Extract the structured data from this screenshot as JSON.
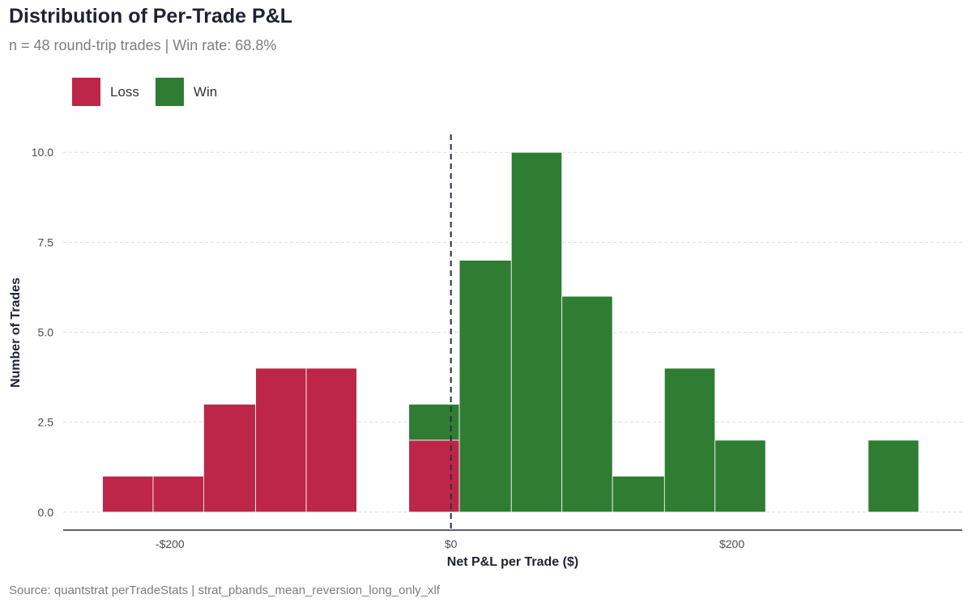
{
  "title": "Distribution of Per-Trade P&L",
  "subtitle": "n = 48 round-trip trades  |  Win rate: 68.8%",
  "caption": "Source: quantstrat perTradeStats | strat_pbands_mean_reversion_long_only_xlf",
  "legend": [
    {
      "label": "Loss",
      "color": "#be2649"
    },
    {
      "label": "Win",
      "color": "#2e7d32"
    }
  ],
  "chart_data": {
    "type": "bar",
    "stacked": true,
    "xlabel": "Net P&L per Trade ($)",
    "ylabel": "Number of Trades",
    "xlim": [
      -276,
      364
    ],
    "ylim": [
      -0.5,
      10.5
    ],
    "x_ticks": [
      {
        "value": -200,
        "label": "-$200"
      },
      {
        "value": 0,
        "label": "$0"
      },
      {
        "value": 200,
        "label": "$200"
      }
    ],
    "y_ticks": [
      {
        "value": 0,
        "label": "0.0"
      },
      {
        "value": 2.5,
        "label": "2.5"
      },
      {
        "value": 5,
        "label": "5.0"
      },
      {
        "value": 7.5,
        "label": "7.5"
      },
      {
        "value": 10,
        "label": "10.0"
      }
    ],
    "reference_line": {
      "x": 0,
      "style": "dashed"
    },
    "grid": "horizontal",
    "bins": [
      {
        "x0": -248,
        "x1": -212,
        "loss": 1,
        "win": 0
      },
      {
        "x0": -212,
        "x1": -176,
        "loss": 1,
        "win": 0
      },
      {
        "x0": -176,
        "x1": -139,
        "loss": 3,
        "win": 0
      },
      {
        "x0": -139,
        "x1": -103,
        "loss": 4,
        "win": 0
      },
      {
        "x0": -103,
        "x1": -67,
        "loss": 4,
        "win": 0
      },
      {
        "x0": -67,
        "x1": -30,
        "loss": 0,
        "win": 0
      },
      {
        "x0": -30,
        "x1": 6,
        "loss": 2,
        "win": 1
      },
      {
        "x0": 6,
        "x1": 43,
        "loss": 0,
        "win": 7
      },
      {
        "x0": 43,
        "x1": 79,
        "loss": 0,
        "win": 10
      },
      {
        "x0": 79,
        "x1": 115,
        "loss": 0,
        "win": 6
      },
      {
        "x0": 115,
        "x1": 152,
        "loss": 0,
        "win": 1
      },
      {
        "x0": 152,
        "x1": 188,
        "loss": 0,
        "win": 4
      },
      {
        "x0": 188,
        "x1": 224,
        "loss": 0,
        "win": 2
      },
      {
        "x0": 224,
        "x1": 261,
        "loss": 0,
        "win": 0
      },
      {
        "x0": 261,
        "x1": 297,
        "loss": 0,
        "win": 0
      },
      {
        "x0": 297,
        "x1": 333,
        "loss": 0,
        "win": 2
      }
    ]
  }
}
